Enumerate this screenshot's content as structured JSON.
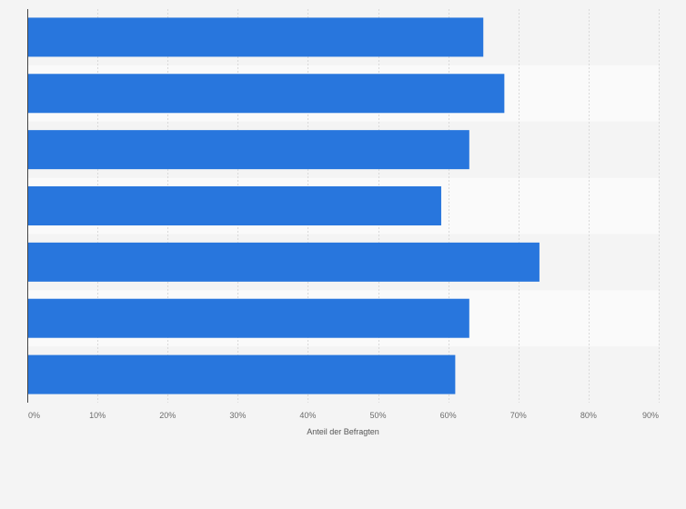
{
  "chart_data": {
    "type": "bar",
    "orientation": "horizontal",
    "categories": [
      "",
      "",
      "",
      "",
      "",
      "",
      ""
    ],
    "values": [
      65,
      68,
      63,
      59,
      73,
      63,
      61
    ],
    "xlabel": "Anteil der Befragten",
    "xlim": [
      0,
      90
    ],
    "x_ticks": [
      0,
      10,
      20,
      30,
      40,
      50,
      60,
      70,
      80,
      90
    ],
    "x_tick_labels": [
      "0%",
      "10%",
      "20%",
      "30%",
      "40%",
      "50%",
      "60%",
      "70%",
      "80%",
      "90%"
    ],
    "grid": true,
    "legend": "none",
    "colors": {
      "bar": "#2876dd",
      "band_light": "#fafafa",
      "band_dark": "#f4f4f4",
      "grid": "#d9d9d9",
      "axis": "#444444"
    }
  }
}
